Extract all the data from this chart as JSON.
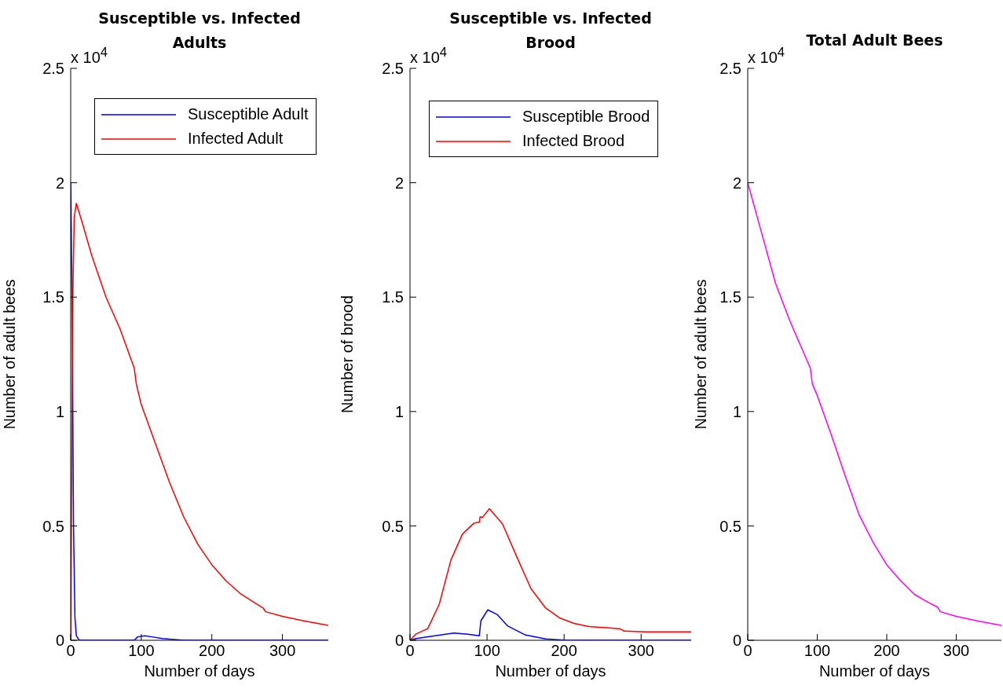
{
  "chart_data": [
    {
      "type": "line",
      "title": "Susceptible vs. Infected Adults",
      "xlabel": "Number of days",
      "ylabel": "Number of adult bees",
      "annotations": [
        "x 10$^{4}$"
      ],
      "xlim": [
        0,
        365
      ],
      "xticks": [
        0,
        100,
        200,
        300
      ],
      "ylim": [
        0,
        2.5
      ],
      "yticks": [
        0,
        0.5,
        1,
        1.5,
        2,
        2.5
      ],
      "grid": false,
      "legend": "top right",
      "marker": "none",
      "line_style": "solid",
      "series": [
        {
          "name": "Susceptible Adult",
          "color": "#0000ff",
          "x": [
            0,
            2,
            4,
            6,
            8,
            12,
            90,
            95,
            105,
            115,
            130,
            160,
            365
          ],
          "values": [
            2,
            1.5,
            0.5,
            0.1,
            0.02,
            0,
            0,
            0.015,
            0.02,
            0.015,
            0.008,
            0,
            0
          ]
        },
        {
          "name": "Infected Adult",
          "color": "#ff0000",
          "x": [
            0,
            3,
            5,
            8,
            15,
            30,
            50,
            70,
            90,
            93,
            100,
            120,
            140,
            160,
            180,
            200,
            220,
            240,
            260,
            273,
            276,
            300,
            330,
            365
          ],
          "values": [
            0,
            1.5,
            1.85,
            1.91,
            1.84,
            1.68,
            1.5,
            1.36,
            1.19,
            1.12,
            1.03,
            0.86,
            0.69,
            0.54,
            0.42,
            0.33,
            0.26,
            0.205,
            0.165,
            0.14,
            0.125,
            0.105,
            0.085,
            0.065
          ]
        }
      ]
    },
    {
      "type": "line",
      "title": "Susceptible vs. Infected Brood",
      "xlabel": "Number of days",
      "ylabel": "Number of brood",
      "annotations": [
        "x 10$^{4}$"
      ],
      "xlim": [
        0,
        365
      ],
      "xticks": [
        0,
        100,
        200,
        300
      ],
      "ylim": [
        0,
        2.5
      ],
      "yticks": [
        0,
        0.5,
        1,
        1.5,
        2,
        2.5
      ],
      "grid": false,
      "legend": "top",
      "marker": "none",
      "line_style": "solid",
      "series": [
        {
          "name": "Susceptible Brood",
          "color": "#0000ff",
          "x": [
            0,
            8,
            27,
            57,
            75,
            90,
            92,
            101,
            113,
            127,
            150,
            176,
            202,
            365
          ],
          "values": [
            0,
            0.008,
            0.017,
            0.032,
            0.027,
            0.02,
            0.085,
            0.133,
            0.113,
            0.062,
            0.023,
            0.006,
            0,
            0
          ]
        },
        {
          "name": "Infected Brood",
          "color": "#ff0000",
          "x": [
            0,
            8,
            23,
            38,
            53,
            68,
            83,
            90,
            91,
            94,
            103,
            120,
            139,
            157,
            176,
            194,
            213,
            232,
            272,
            278,
            306,
            365
          ],
          "values": [
            0,
            0.028,
            0.051,
            0.158,
            0.35,
            0.464,
            0.512,
            0.517,
            0.54,
            0.537,
            0.575,
            0.509,
            0.362,
            0.226,
            0.141,
            0.098,
            0.074,
            0.06,
            0.051,
            0.04,
            0.037,
            0.037
          ]
        }
      ]
    },
    {
      "type": "line",
      "title": "Total Adult Bees",
      "xlabel": "Number of days",
      "ylabel": "Number of adult bees",
      "annotations": [
        "x 10$^{4}$"
      ],
      "xlim": [
        0,
        365
      ],
      "xticks": [
        0,
        100,
        200,
        300
      ],
      "ylim": [
        0,
        2.5
      ],
      "yticks": [
        0,
        0.5,
        1,
        1.5,
        2,
        2.5
      ],
      "grid": false,
      "marker": "none",
      "line_style": "solid",
      "series": [
        {
          "color": "#ff00ff",
          "x": [
            0,
            20,
            40,
            60,
            90,
            93,
            100,
            120,
            140,
            160,
            180,
            200,
            220,
            240,
            260,
            273,
            277,
            300,
            330,
            365
          ],
          "values": [
            2,
            1.78,
            1.56,
            1.4,
            1.19,
            1.12,
            1.07,
            0.9,
            0.72,
            0.55,
            0.43,
            0.33,
            0.26,
            0.2,
            0.165,
            0.145,
            0.125,
            0.105,
            0.085,
            0.065
          ]
        }
      ]
    }
  ]
}
